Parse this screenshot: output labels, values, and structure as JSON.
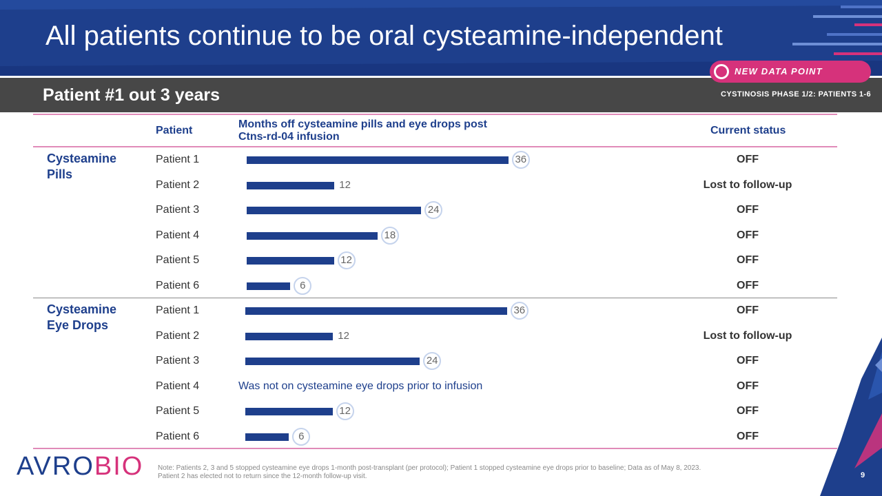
{
  "header": {
    "title": "All patients continue to be oral cysteamine-independent",
    "subtitle": "Patient #1 out 3 years",
    "phase_label": "CYSTINOSIS PHASE 1/2: PATIENTS 1-6",
    "badge_label": "NEW DATA POINT"
  },
  "table": {
    "col_patient": "Patient",
    "col_months": "Months off cysteamine pills and eye drops post",
    "col_months_line2": "Ctns-rd-04 infusion",
    "col_status": "Current status"
  },
  "chart_data": {
    "type": "bar",
    "orientation": "horizontal",
    "title": "Months off cysteamine pills and eye drops post Ctns-rd-04 infusion",
    "groups": [
      {
        "name": "Cysteamine Pills",
        "name_line1": "Cysteamine",
        "name_line2": "Pills",
        "rows": [
          {
            "patient": "Patient 1",
            "months": 36,
            "label": "36",
            "new_data": true,
            "status": "OFF"
          },
          {
            "patient": "Patient 2",
            "months": 12,
            "label": "12",
            "new_data": false,
            "status": "Lost to follow-up"
          },
          {
            "patient": "Patient 3",
            "months": 24,
            "label": "24",
            "new_data": true,
            "status": "OFF"
          },
          {
            "patient": "Patient 4",
            "months": 18,
            "label": "18",
            "new_data": true,
            "status": "OFF"
          },
          {
            "patient": "Patient 5",
            "months": 12,
            "label": "12",
            "new_data": true,
            "status": "OFF"
          },
          {
            "patient": "Patient 6",
            "months": 6,
            "label": "6",
            "new_data": true,
            "status": "OFF"
          }
        ]
      },
      {
        "name": "Cysteamine Eye Drops",
        "name_line1": "Cysteamine",
        "name_line2": "Eye Drops",
        "rows": [
          {
            "patient": "Patient 1",
            "months": 36,
            "label": "36",
            "new_data": true,
            "status": "OFF"
          },
          {
            "patient": "Patient 2",
            "months": 12,
            "label": "12",
            "new_data": false,
            "status": "Lost to follow-up"
          },
          {
            "patient": "Patient 3",
            "months": 24,
            "label": "24",
            "new_data": true,
            "status": "OFF"
          },
          {
            "patient": "Patient 4",
            "months": null,
            "label": "",
            "new_data": false,
            "status": "OFF",
            "note": "Was not on cysteamine eye drops prior to infusion"
          },
          {
            "patient": "Patient 5",
            "months": 12,
            "label": "12",
            "new_data": true,
            "status": "OFF"
          },
          {
            "patient": "Patient 6",
            "months": 6,
            "label": "6",
            "new_data": true,
            "status": "OFF"
          }
        ]
      }
    ]
  },
  "footnote": {
    "line1": "Note: Patients 2, 3 and 5 stopped cysteamine eye drops 1-month post-transplant (per protocol); Patient 1 stopped cysteamine eye drops prior to baseline; Data as of May 8, 2023.",
    "line2": "Patient 2 has elected not to return since the 12-month  follow-up visit."
  },
  "logo": {
    "part1": "AVRO",
    "part2": "BIO"
  },
  "page_number": "9",
  "colors": {
    "navy": "#1e3f8c",
    "pink": "#d6327b",
    "dark_gray": "#474747"
  }
}
